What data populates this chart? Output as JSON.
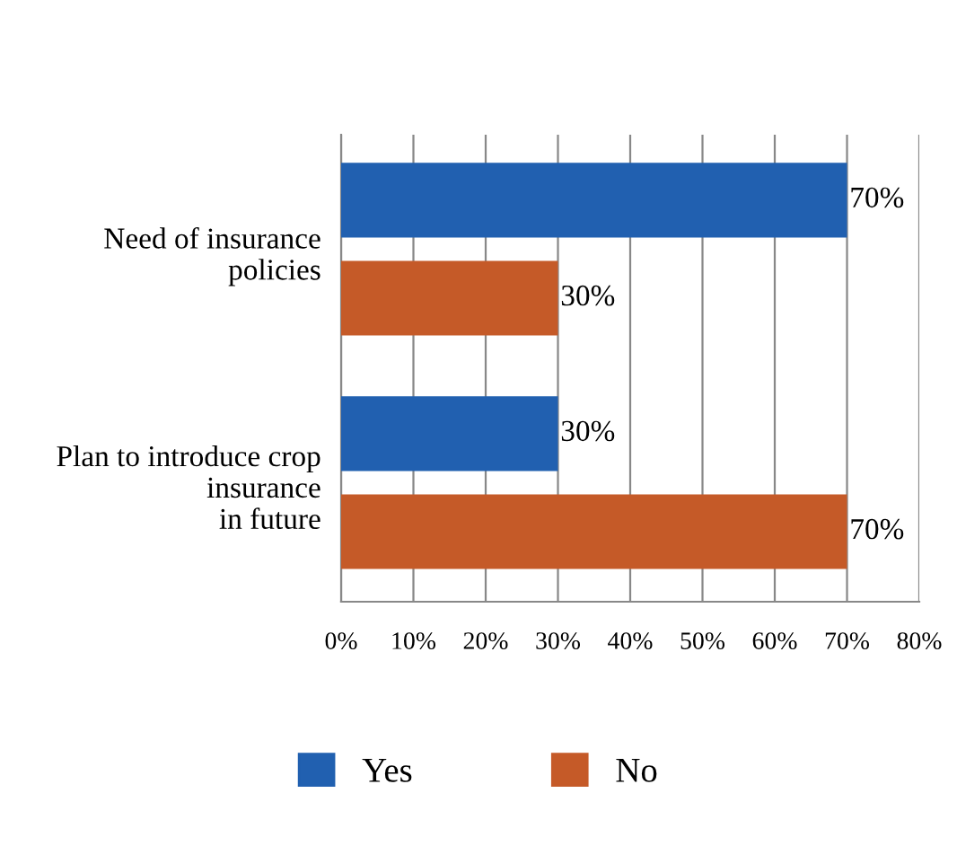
{
  "chart_data": {
    "type": "bar",
    "orientation": "horizontal",
    "categories": [
      "Need of insurance policies",
      "Plan to introduce crop insurance in future"
    ],
    "series": [
      {
        "name": "Yes",
        "color": "#2160b0",
        "values": [
          70,
          30
        ],
        "value_labels": [
          "70%",
          "30%"
        ]
      },
      {
        "name": "No",
        "color": "#c55a28",
        "values": [
          30,
          70
        ],
        "value_labels": [
          "30%",
          "70%"
        ]
      }
    ],
    "xlim": [
      0,
      80
    ],
    "xticks": [
      {
        "value": 0,
        "label": "0%"
      },
      {
        "value": 10,
        "label": "10%"
      },
      {
        "value": 20,
        "label": "20%"
      },
      {
        "value": 30,
        "label": "30%"
      },
      {
        "value": 40,
        "label": "40%"
      },
      {
        "value": 50,
        "label": "50%"
      },
      {
        "value": 60,
        "label": "60%"
      },
      {
        "value": 70,
        "label": "70%"
      },
      {
        "value": 80,
        "label": "80%"
      }
    ],
    "grid": "x",
    "legend": "bottom"
  }
}
